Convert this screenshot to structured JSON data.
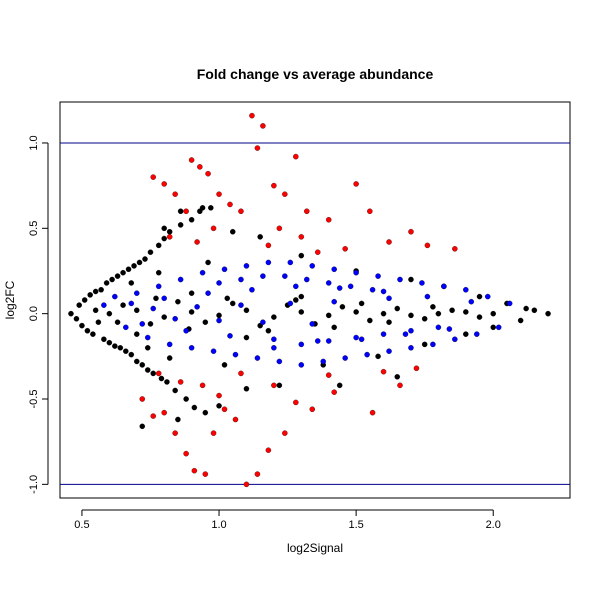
{
  "chart_data": {
    "type": "scatter",
    "title": "Fold change vs average abundance",
    "xlabel": "log2Signal",
    "ylabel": "log2FC",
    "xlim": [
      0.42,
      2.28
    ],
    "ylim": [
      -1.08,
      1.24
    ],
    "x_ticks": [
      0.5,
      1.0,
      1.5,
      2.0
    ],
    "x_tick_labels": [
      "0.5",
      "1.0",
      "1.5",
      "2.0"
    ],
    "y_ticks": [
      -1.0,
      -0.5,
      0.0,
      0.5,
      1.0
    ],
    "y_tick_labels": [
      "-1.0",
      "-0.5",
      "0.0",
      "0.5",
      "1.0"
    ],
    "hlines": [
      1.0,
      -1.0
    ],
    "hline_color": "#00008b",
    "grid": false,
    "legend": "none",
    "series": [
      {
        "color": "#000000",
        "points": [
          [
            0.46,
            0.0
          ],
          [
            0.48,
            -0.03
          ],
          [
            0.49,
            0.05
          ],
          [
            0.5,
            -0.07
          ],
          [
            0.51,
            0.08
          ],
          [
            0.52,
            -0.1
          ],
          [
            0.53,
            0.11
          ],
          [
            0.54,
            -0.12
          ],
          [
            0.55,
            0.13
          ],
          [
            0.56,
            -0.05
          ],
          [
            0.57,
            0.14
          ],
          [
            0.58,
            -0.15
          ],
          [
            0.59,
            0.18
          ],
          [
            0.6,
            -0.17
          ],
          [
            0.61,
            0.2
          ],
          [
            0.62,
            -0.19
          ],
          [
            0.63,
            0.22
          ],
          [
            0.64,
            -0.2
          ],
          [
            0.65,
            0.24
          ],
          [
            0.66,
            -0.22
          ],
          [
            0.67,
            0.26
          ],
          [
            0.68,
            -0.24
          ],
          [
            0.69,
            0.28
          ],
          [
            0.7,
            -0.28
          ],
          [
            0.71,
            0.3
          ],
          [
            0.72,
            -0.3
          ],
          [
            0.73,
            0.32
          ],
          [
            0.74,
            -0.33
          ],
          [
            0.75,
            0.36
          ],
          [
            0.76,
            -0.35
          ],
          [
            0.78,
            0.4
          ],
          [
            0.79,
            -0.38
          ],
          [
            0.8,
            0.44
          ],
          [
            0.81,
            -0.4
          ],
          [
            0.82,
            0.48
          ],
          [
            0.84,
            -0.45
          ],
          [
            0.86,
            0.52
          ],
          [
            0.88,
            -0.5
          ],
          [
            0.9,
            0.55
          ],
          [
            0.91,
            -0.55
          ],
          [
            0.93,
            0.6
          ],
          [
            0.95,
            -0.58
          ],
          [
            0.97,
            0.62
          ],
          [
            0.85,
            -0.62
          ],
          [
            0.72,
            -0.66
          ],
          [
            0.8,
            0.5
          ],
          [
            0.86,
            0.6
          ],
          [
            0.94,
            0.62
          ],
          [
            1.0,
            -0.54
          ],
          [
            1.05,
            0.48
          ],
          [
            1.1,
            -0.44
          ],
          [
            1.15,
            0.45
          ],
          [
            1.22,
            -0.42
          ],
          [
            1.3,
            0.34
          ],
          [
            1.38,
            -0.3
          ],
          [
            1.44,
            -0.42
          ],
          [
            1.5,
            0.25
          ],
          [
            1.58,
            -0.25
          ],
          [
            1.65,
            -0.37
          ],
          [
            1.7,
            0.2
          ],
          [
            1.75,
            -0.18
          ],
          [
            1.82,
            0.16
          ],
          [
            1.9,
            -0.12
          ],
          [
            1.95,
            0.1
          ],
          [
            2.0,
            -0.08
          ],
          [
            2.05,
            0.06
          ],
          [
            2.1,
            -0.04
          ],
          [
            2.15,
            0.02
          ],
          [
            2.2,
            0.0
          ],
          [
            2.12,
            0.03
          ],
          [
            0.6,
            0.0
          ],
          [
            0.7,
            0.02
          ],
          [
            0.8,
            -0.02
          ],
          [
            0.9,
            0.01
          ],
          [
            1.0,
            -0.01
          ],
          [
            1.1,
            0.02
          ],
          [
            1.2,
            -0.02
          ],
          [
            1.3,
            0.01
          ],
          [
            1.4,
            -0.01
          ],
          [
            1.5,
            0.01
          ],
          [
            1.6,
            0.0
          ],
          [
            1.7,
            -0.01
          ],
          [
            1.8,
            0.0
          ],
          [
            1.9,
            0.01
          ],
          [
            2.0,
            0.0
          ],
          [
            0.65,
            0.05
          ],
          [
            0.75,
            -0.06
          ],
          [
            0.85,
            0.07
          ],
          [
            0.95,
            -0.05
          ],
          [
            1.05,
            0.06
          ],
          [
            1.15,
            -0.07
          ],
          [
            1.25,
            0.05
          ],
          [
            1.35,
            -0.06
          ],
          [
            1.45,
            0.04
          ],
          [
            1.55,
            -0.04
          ],
          [
            1.65,
            0.03
          ],
          [
            1.75,
            -0.03
          ],
          [
            1.85,
            0.02
          ],
          [
            1.95,
            -0.02
          ],
          [
            0.55,
            0.02
          ],
          [
            0.7,
            -0.12
          ],
          [
            0.9,
            0.12
          ],
          [
            1.1,
            -0.14
          ],
          [
            1.3,
            0.1
          ],
          [
            0.68,
            0.18
          ],
          [
            0.74,
            -0.2
          ],
          [
            0.78,
            0.24
          ],
          [
            0.82,
            -0.26
          ],
          [
            0.96,
            0.3
          ],
          [
            1.02,
            -0.3
          ],
          [
            0.63,
            -0.05
          ],
          [
            0.77,
            0.09
          ],
          [
            0.89,
            -0.09
          ],
          [
            1.03,
            0.09
          ],
          [
            1.18,
            -0.1
          ],
          [
            1.28,
            0.08
          ],
          [
            1.42,
            -0.08
          ],
          [
            1.52,
            0.06
          ],
          [
            1.62,
            -0.05
          ],
          [
            1.78,
            0.04
          ]
        ]
      },
      {
        "color": "#0000ff",
        "points": [
          [
            0.58,
            0.05
          ],
          [
            0.62,
            0.1
          ],
          [
            0.66,
            -0.08
          ],
          [
            0.7,
            0.12
          ],
          [
            0.74,
            -0.14
          ],
          [
            0.78,
            0.16
          ],
          [
            0.82,
            -0.18
          ],
          [
            0.86,
            0.2
          ],
          [
            0.9,
            -0.2
          ],
          [
            0.94,
            0.24
          ],
          [
            0.98,
            -0.22
          ],
          [
            1.02,
            0.26
          ],
          [
            1.06,
            -0.24
          ],
          [
            1.1,
            0.28
          ],
          [
            1.14,
            -0.26
          ],
          [
            1.18,
            0.3
          ],
          [
            1.22,
            -0.28
          ],
          [
            1.26,
            0.3
          ],
          [
            1.3,
            -0.3
          ],
          [
            1.34,
            0.28
          ],
          [
            1.38,
            -0.28
          ],
          [
            1.42,
            0.26
          ],
          [
            1.46,
            -0.26
          ],
          [
            1.5,
            0.24
          ],
          [
            1.54,
            -0.24
          ],
          [
            1.58,
            0.22
          ],
          [
            1.62,
            -0.22
          ],
          [
            1.66,
            0.2
          ],
          [
            1.7,
            -0.2
          ],
          [
            1.74,
            0.18
          ],
          [
            1.78,
            -0.18
          ],
          [
            1.82,
            0.16
          ],
          [
            1.86,
            -0.15
          ],
          [
            1.9,
            0.14
          ],
          [
            1.94,
            -0.12
          ],
          [
            1.98,
            0.1
          ],
          [
            2.02,
            -0.08
          ],
          [
            2.06,
            0.06
          ],
          [
            0.68,
            0.06
          ],
          [
            0.72,
            -0.06
          ],
          [
            0.8,
            0.09
          ],
          [
            0.88,
            -0.1
          ],
          [
            0.96,
            0.12
          ],
          [
            1.04,
            -0.13
          ],
          [
            1.12,
            0.14
          ],
          [
            1.2,
            -0.15
          ],
          [
            1.28,
            0.16
          ],
          [
            1.36,
            -0.16
          ],
          [
            1.44,
            0.15
          ],
          [
            1.52,
            -0.15
          ],
          [
            1.6,
            0.13
          ],
          [
            1.68,
            -0.12
          ],
          [
            1.76,
            0.1
          ],
          [
            1.84,
            -0.09
          ],
          [
            1.92,
            0.07
          ],
          [
            1.24,
            0.22
          ],
          [
            1.32,
            0.2
          ],
          [
            1.4,
            0.18
          ],
          [
            1.48,
            0.16
          ],
          [
            1.56,
            0.14
          ],
          [
            1.0,
            0.18
          ],
          [
            1.08,
            0.2
          ],
          [
            1.16,
            0.22
          ],
          [
            1.2,
            -0.2
          ],
          [
            1.3,
            -0.18
          ],
          [
            1.4,
            -0.16
          ],
          [
            1.5,
            -0.14
          ],
          [
            1.6,
            -0.12
          ],
          [
            1.7,
            -0.1
          ],
          [
            1.8,
            -0.08
          ],
          [
            0.76,
            0.03
          ],
          [
            0.84,
            -0.03
          ],
          [
            0.92,
            0.04
          ],
          [
            1.0,
            -0.04
          ],
          [
            1.08,
            0.05
          ],
          [
            1.16,
            -0.05
          ],
          [
            1.26,
            0.06
          ],
          [
            1.34,
            -0.06
          ],
          [
            1.42,
            0.07
          ],
          [
            1.62,
            0.09
          ]
        ]
      },
      {
        "color": "#ff0000",
        "points": [
          [
            0.76,
            0.8
          ],
          [
            0.8,
            0.76
          ],
          [
            0.84,
            0.7
          ],
          [
            0.88,
            0.6
          ],
          [
            0.9,
            0.9
          ],
          [
            0.93,
            0.86
          ],
          [
            0.96,
            0.82
          ],
          [
            1.0,
            0.7
          ],
          [
            1.04,
            0.64
          ],
          [
            1.08,
            0.6
          ],
          [
            1.12,
            1.16
          ],
          [
            1.14,
            0.97
          ],
          [
            1.16,
            1.1
          ],
          [
            1.2,
            0.75
          ],
          [
            1.24,
            0.7
          ],
          [
            1.28,
            0.92
          ],
          [
            1.32,
            0.6
          ],
          [
            1.4,
            0.55
          ],
          [
            1.5,
            0.76
          ],
          [
            1.55,
            0.6
          ],
          [
            1.62,
            0.42
          ],
          [
            1.7,
            0.48
          ],
          [
            1.76,
            0.4
          ],
          [
            1.86,
            0.38
          ],
          [
            0.82,
            0.45
          ],
          [
            0.98,
            0.5
          ],
          [
            1.18,
            0.4
          ],
          [
            1.36,
            0.36
          ],
          [
            1.46,
            0.38
          ],
          [
            1.3,
            0.45
          ],
          [
            0.72,
            -0.5
          ],
          [
            0.76,
            -0.6
          ],
          [
            0.8,
            -0.58
          ],
          [
            0.84,
            -0.7
          ],
          [
            0.88,
            -0.82
          ],
          [
            0.91,
            -0.92
          ],
          [
            0.95,
            -0.94
          ],
          [
            0.98,
            -0.7
          ],
          [
            1.02,
            -0.56
          ],
          [
            1.06,
            -0.62
          ],
          [
            1.1,
            -1.0
          ],
          [
            1.14,
            -0.94
          ],
          [
            1.18,
            -0.8
          ],
          [
            1.24,
            -0.7
          ],
          [
            1.28,
            -0.52
          ],
          [
            1.34,
            -0.56
          ],
          [
            1.42,
            -0.46
          ],
          [
            1.56,
            -0.58
          ],
          [
            1.66,
            -0.42
          ],
          [
            0.86,
            -0.4
          ],
          [
            0.94,
            -0.42
          ],
          [
            1.0,
            -0.48
          ],
          [
            1.2,
            -0.42
          ],
          [
            1.4,
            -0.36
          ],
          [
            1.6,
            -0.34
          ],
          [
            1.72,
            -0.32
          ],
          [
            0.78,
            -0.35
          ],
          [
            1.08,
            -0.35
          ],
          [
            0.92,
            0.42
          ],
          [
            1.22,
            0.5
          ]
        ]
      }
    ]
  }
}
